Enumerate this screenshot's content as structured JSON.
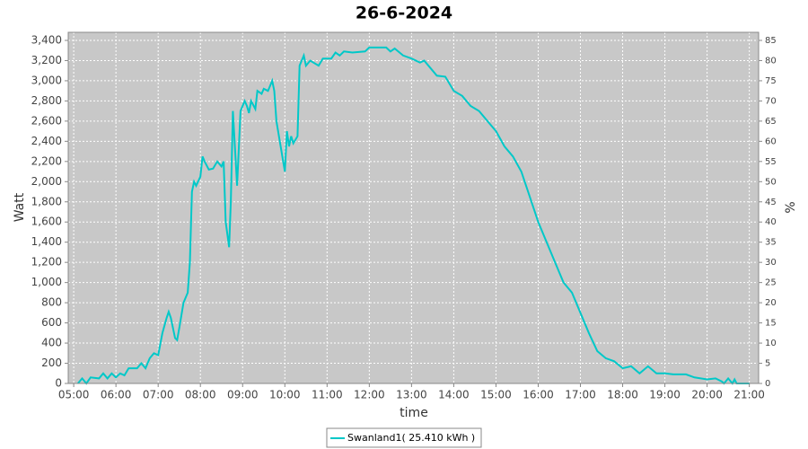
{
  "chart_data": {
    "type": "line",
    "title": "26-6-2024",
    "xlabel": "time",
    "ylabel": "Watt",
    "y2label": "%",
    "x": [
      5.1,
      5.2,
      5.3,
      5.4,
      5.6,
      5.7,
      5.8,
      5.9,
      6.0,
      6.1,
      6.2,
      6.3,
      6.5,
      6.6,
      6.7,
      6.8,
      6.9,
      7.0,
      7.1,
      7.2,
      7.25,
      7.3,
      7.4,
      7.45,
      7.5,
      7.6,
      7.7,
      7.75,
      7.8,
      7.85,
      7.9,
      8.0,
      8.05,
      8.1,
      8.2,
      8.3,
      8.4,
      8.5,
      8.55,
      8.6,
      8.68,
      8.72,
      8.77,
      8.87,
      8.95,
      9.05,
      9.1,
      9.15,
      9.2,
      9.3,
      9.35,
      9.45,
      9.5,
      9.6,
      9.7,
      9.75,
      9.8,
      10.0,
      10.05,
      10.1,
      10.15,
      10.2,
      10.3,
      10.35,
      10.45,
      10.5,
      10.6,
      10.8,
      10.9,
      11.1,
      11.2,
      11.3,
      11.4,
      11.6,
      11.9,
      12.0,
      12.4,
      12.5,
      12.6,
      12.8,
      13.0,
      13.2,
      13.3,
      13.5,
      13.6,
      13.8,
      14.0,
      14.2,
      14.4,
      14.6,
      14.8,
      15.0,
      15.2,
      15.4,
      15.6,
      15.8,
      16.0,
      16.2,
      16.4,
      16.6,
      16.8,
      17.0,
      17.2,
      17.4,
      17.6,
      17.8,
      18.0,
      18.2,
      18.4,
      18.6,
      18.8,
      19.0,
      19.2,
      19.5,
      19.7,
      20.0,
      20.2,
      20.35,
      20.4,
      20.5,
      20.6,
      20.65,
      20.7,
      21.0
    ],
    "series": [
      {
        "name": "Swanland1( 25.410 kWh )",
        "color": "#00c8c8",
        "values": [
          0,
          50,
          0,
          60,
          50,
          100,
          50,
          100,
          60,
          100,
          80,
          150,
          150,
          200,
          150,
          250,
          300,
          280,
          500,
          650,
          710,
          650,
          450,
          430,
          550,
          800,
          900,
          1200,
          1900,
          2000,
          1960,
          2050,
          2250,
          2200,
          2120,
          2130,
          2200,
          2150,
          2200,
          1600,
          1350,
          1800,
          2700,
          1960,
          2700,
          2800,
          2750,
          2680,
          2800,
          2720,
          2900,
          2870,
          2920,
          2900,
          3000,
          2900,
          2600,
          2100,
          2500,
          2350,
          2450,
          2380,
          2450,
          3150,
          3250,
          3150,
          3200,
          3150,
          3220,
          3220,
          3280,
          3250,
          3290,
          3280,
          3290,
          3330,
          3330,
          3290,
          3320,
          3250,
          3220,
          3180,
          3200,
          3100,
          3050,
          3040,
          2900,
          2850,
          2750,
          2700,
          2600,
          2500,
          2350,
          2250,
          2100,
          1850,
          1600,
          1400,
          1200,
          1000,
          900,
          700,
          500,
          320,
          250,
          220,
          150,
          170,
          100,
          170,
          100,
          100,
          90,
          90,
          60,
          40,
          50,
          20,
          0,
          50,
          0,
          40,
          0,
          0
        ]
      }
    ],
    "xlim": [
      4.87,
      21.22
    ],
    "xticks": [
      {
        "value": 5,
        "label": "05:00"
      },
      {
        "value": 6,
        "label": "06:00"
      },
      {
        "value": 7,
        "label": "07:00"
      },
      {
        "value": 8,
        "label": "08:00"
      },
      {
        "value": 9,
        "label": "09:00"
      },
      {
        "value": 10,
        "label": "10:00"
      },
      {
        "value": 11,
        "label": "11:00"
      },
      {
        "value": 12,
        "label": "12:00"
      },
      {
        "value": 13,
        "label": "13:00"
      },
      {
        "value": 14,
        "label": "14:00"
      },
      {
        "value": 15,
        "label": "15:00"
      },
      {
        "value": 16,
        "label": "16:00"
      },
      {
        "value": 17,
        "label": "17:00"
      },
      {
        "value": 18,
        "label": "18:00"
      },
      {
        "value": 19,
        "label": "19:00"
      },
      {
        "value": 20,
        "label": "20:00"
      },
      {
        "value": 21,
        "label": "21:00"
      }
    ],
    "ylim": [
      0,
      3480
    ],
    "yticks": [
      0,
      200,
      400,
      600,
      800,
      {
        "value": 1000,
        "label": "1,000"
      },
      {
        "value": 1200,
        "label": "1,200"
      },
      {
        "value": 1400,
        "label": "1,400"
      },
      {
        "value": 1600,
        "label": "1,600"
      },
      {
        "value": 1800,
        "label": "1,800"
      },
      {
        "value": 2000,
        "label": "2,000"
      },
      {
        "value": 2200,
        "label": "2,200"
      },
      {
        "value": 2400,
        "label": "2,400"
      },
      {
        "value": 2600,
        "label": "2,600"
      },
      {
        "value": 2800,
        "label": "2,800"
      },
      {
        "value": 3000,
        "label": "3,000"
      },
      {
        "value": 3200,
        "label": "3,200"
      },
      {
        "value": 3400,
        "label": "3,400"
      }
    ],
    "y2lim": [
      0,
      87
    ],
    "y2ticks": [
      0,
      5,
      10,
      15,
      20,
      25,
      30,
      35,
      40,
      45,
      50,
      55,
      60,
      65,
      70,
      75,
      80,
      85
    ],
    "grid": true,
    "plot_background": "#c8c8c8",
    "legend": "bottom"
  }
}
